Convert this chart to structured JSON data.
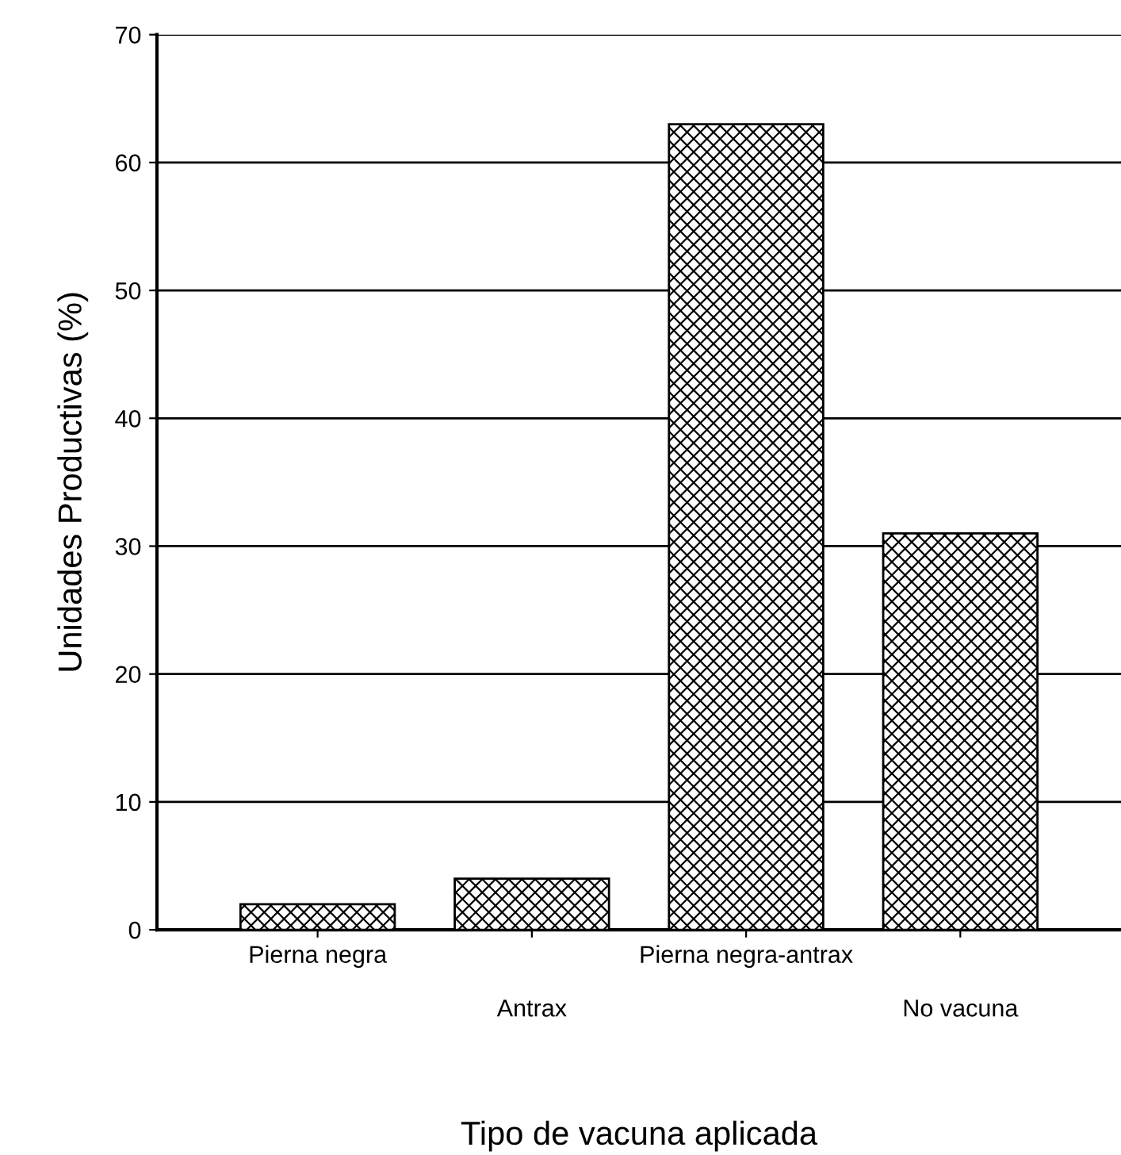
{
  "chart_data": {
    "type": "bar",
    "xlabel": "Tipo de vacuna aplicada",
    "ylabel": "Unidades Productivas (%)",
    "categories": [
      "Pierna negra",
      "Antrax",
      "Pierna negra-antrax",
      "No vacuna"
    ],
    "values": [
      2,
      4,
      63,
      31
    ],
    "color": "#000000",
    "ylim": [
      0,
      70
    ],
    "yticks": [
      0,
      10,
      20,
      30,
      40,
      50,
      60,
      70
    ],
    "grid": "y"
  }
}
